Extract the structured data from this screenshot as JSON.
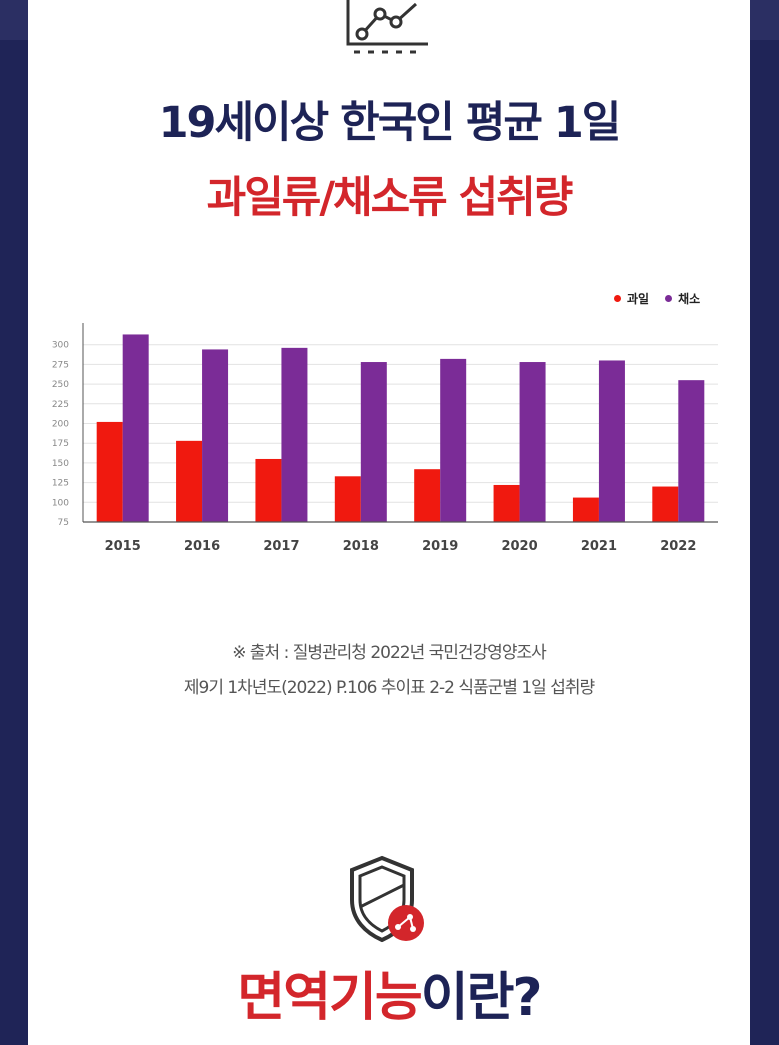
{
  "header": {
    "title_line1": "19세이상 한국인 평균 1일",
    "title_line2": "과일류/채소류 섭취량"
  },
  "colors": {
    "navy": "#1d2356",
    "red": "#d3262b",
    "fruit_bar": "#f0190f",
    "vegetable_bar": "#7b2c97",
    "background": "#1f2457"
  },
  "icons": {
    "top": "line-chart-icon",
    "bottom": "shield-icon"
  },
  "chart_data": {
    "type": "bar",
    "categories": [
      "2015",
      "2016",
      "2017",
      "2018",
      "2019",
      "2020",
      "2021",
      "2022"
    ],
    "series": [
      {
        "name": "과일",
        "values": [
          202,
          178,
          155,
          133,
          142,
          122,
          106,
          120
        ]
      },
      {
        "name": "채소",
        "values": [
          313,
          294,
          296,
          278,
          282,
          278,
          280,
          255
        ]
      }
    ],
    "y_ticks": [
      "75",
      "100",
      "125",
      "150",
      "175",
      "200",
      "225",
      "250",
      "275",
      "300"
    ],
    "ylim": [
      75,
      325
    ],
    "grid": true,
    "legend_position": "top-right",
    "xlabel": "",
    "ylabel": ""
  },
  "source": {
    "line1": "※ 출처 : 질병관리청 2022년 국민건강영양조사",
    "line2": "제9기 1차년도(2022) P.106 추이표 2-2 식품군별 1일 섭취량"
  },
  "section2": {
    "title_part1": "면역기능",
    "title_part2": "이란?"
  }
}
